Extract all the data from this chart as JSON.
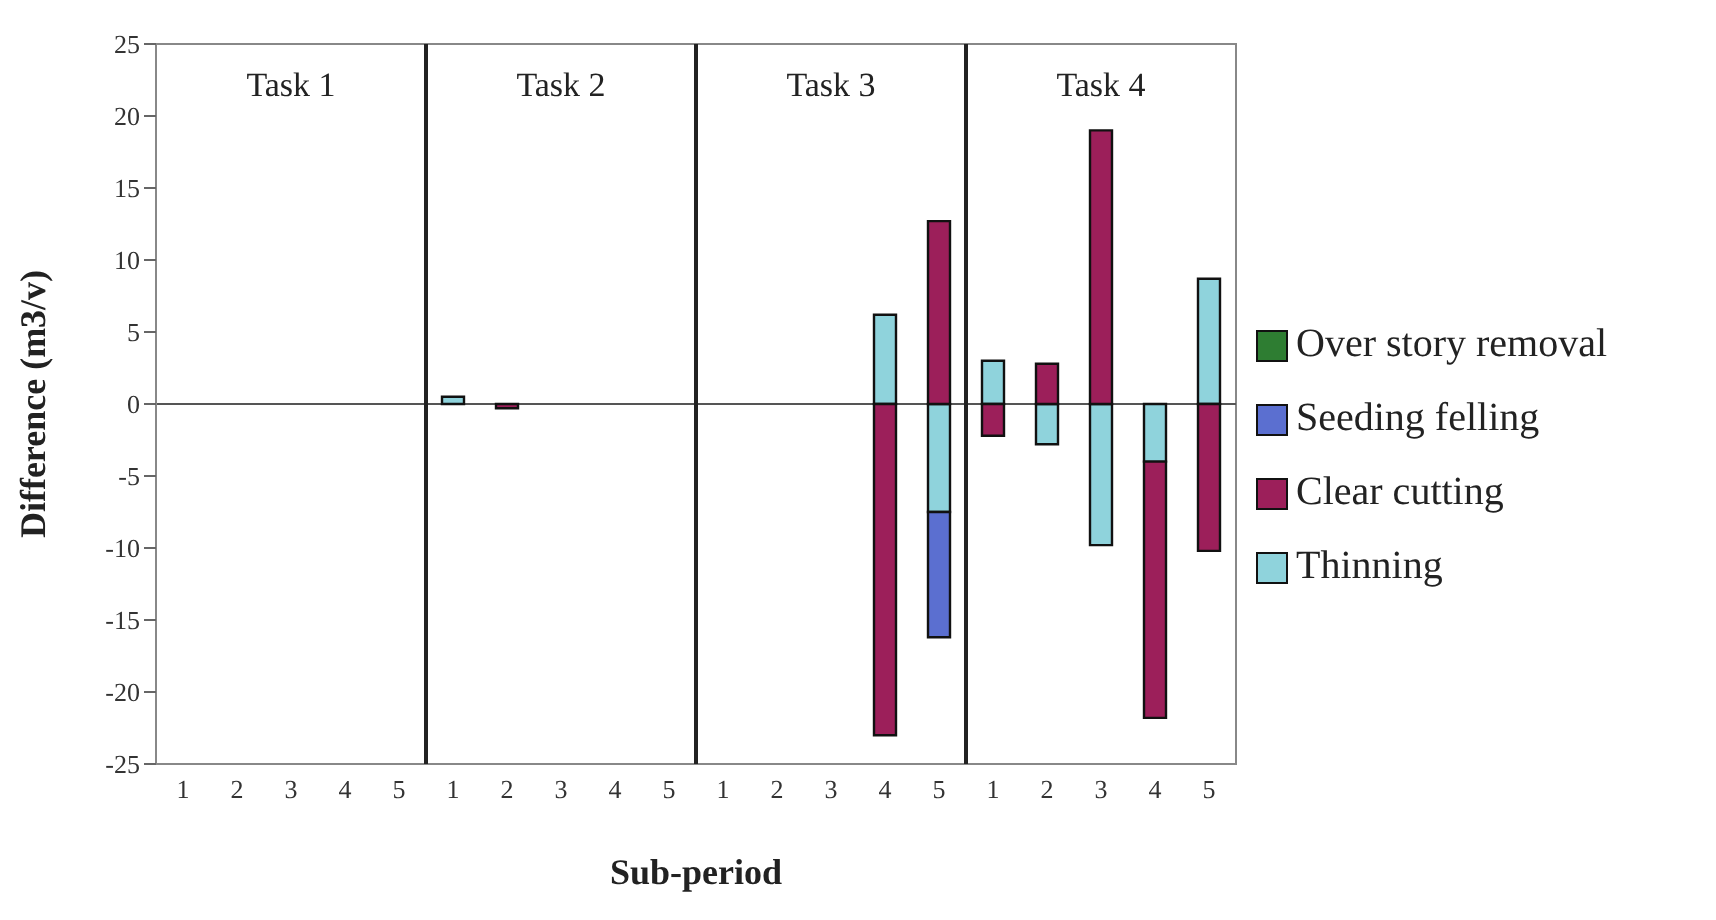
{
  "chart_data": {
    "type": "bar",
    "stacked": true,
    "xlabel": "Sub-period",
    "ylabel": "Difference (m3/v)",
    "categories": [
      "1",
      "2",
      "3",
      "4",
      "5",
      "1",
      "2",
      "3",
      "4",
      "5",
      "1",
      "2",
      "3",
      "4",
      "5",
      "1",
      "2",
      "3",
      "4",
      "5"
    ],
    "annotations": [
      "Task 1",
      "Task 2",
      "Task 3",
      "Task 4"
    ],
    "ylim": [
      -25,
      25
    ],
    "yticks": [
      -25,
      -20,
      -15,
      -10,
      -5,
      0,
      5,
      10,
      15,
      20,
      25
    ],
    "legend": "right",
    "series": [
      {
        "name": "Thinning",
        "color": "#8fd3dc",
        "values": [
          null,
          null,
          null,
          null,
          null,
          0.5,
          null,
          null,
          null,
          null,
          null,
          null,
          null,
          6.2,
          -7.5,
          3.0,
          -2.8,
          -9.8,
          -4.0,
          8.7
        ]
      },
      {
        "name": "Clear cutting",
        "color": "#9c1f5a",
        "values": [
          null,
          null,
          null,
          null,
          null,
          null,
          -0.3,
          null,
          null,
          null,
          null,
          null,
          null,
          -23,
          12.7,
          -2.2,
          2.8,
          19,
          -17.8,
          -10.2
        ]
      },
      {
        "name": "Seeding felling",
        "color": "#5b6fd0",
        "values": [
          null,
          null,
          null,
          null,
          null,
          null,
          null,
          null,
          null,
          null,
          null,
          null,
          null,
          null,
          -8.7,
          null,
          null,
          null,
          null,
          null
        ]
      },
      {
        "name": "Over story removal",
        "color": "#2e7d32",
        "values": [
          null,
          null,
          null,
          null,
          null,
          null,
          null,
          null,
          null,
          null,
          null,
          null,
          null,
          null,
          null,
          null,
          null,
          null,
          null,
          null
        ]
      }
    ]
  }
}
